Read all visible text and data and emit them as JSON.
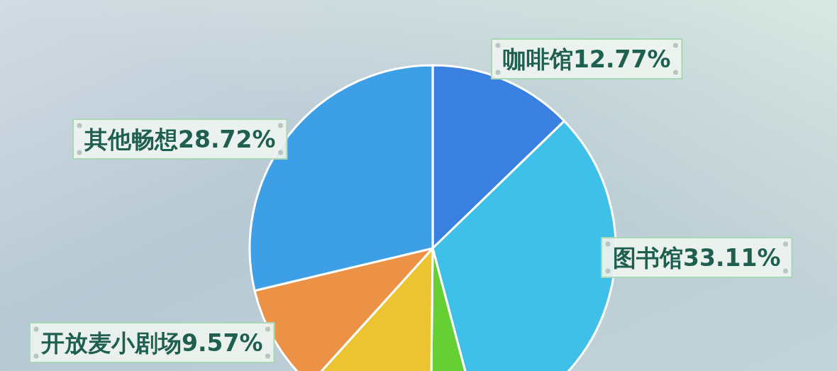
{
  "chart_data": {
    "type": "pie",
    "categories": [
      "咖啡馆",
      "图书馆",
      null,
      null,
      "开放麦小剧场",
      "其他畅想"
    ],
    "values": [
      12.77,
      33.11,
      4.3,
      11.53,
      9.57,
      28.72
    ],
    "colors": [
      "#3a80e0",
      "#3ec0e8",
      "#66cf34",
      "#ecc431",
      "#ec9246",
      "#3d9fe6"
    ],
    "value_labels": [
      "12.77%",
      "33.11%",
      null,
      null,
      "9.57%",
      "28.72%"
    ]
  }
}
